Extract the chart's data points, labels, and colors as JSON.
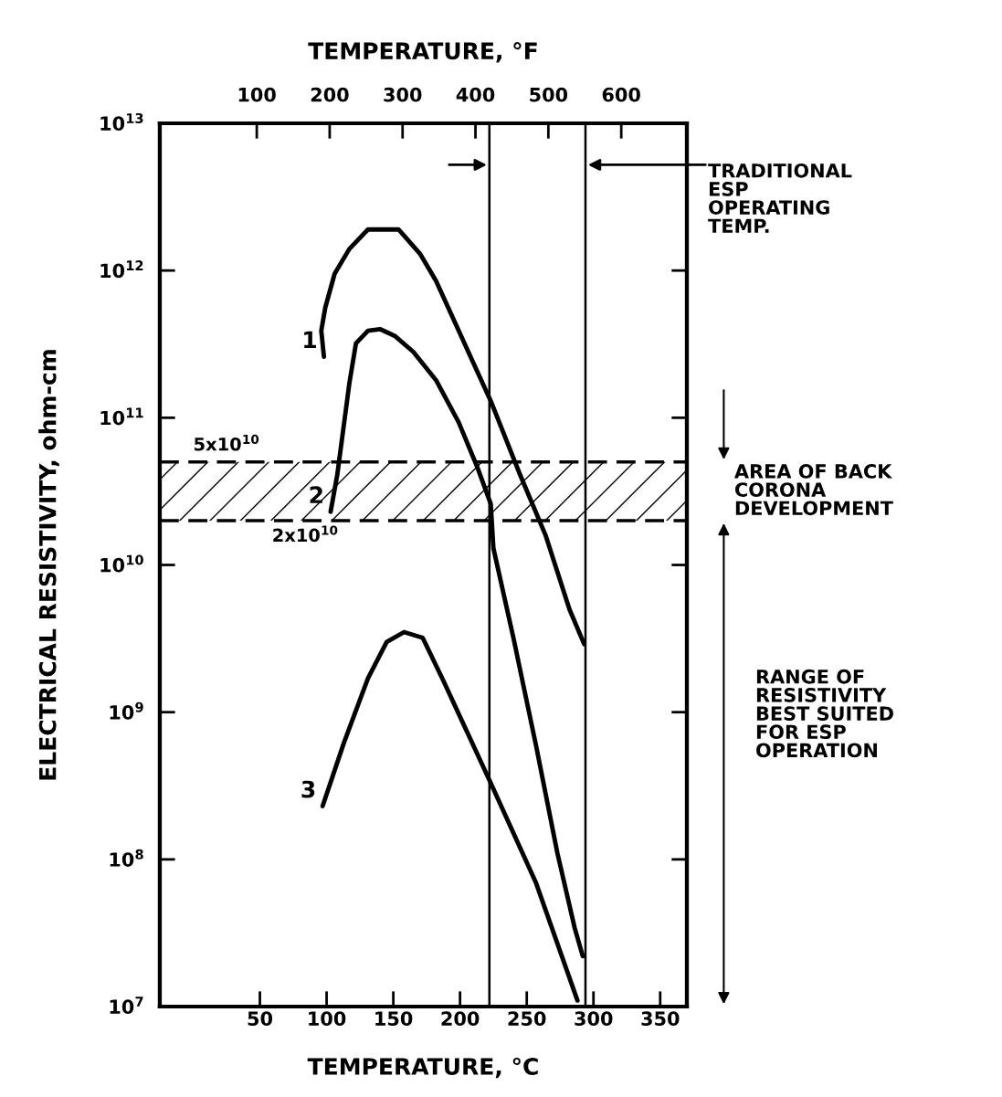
{
  "chart_data": {
    "type": "line",
    "xlabel": "TEMPERATURE, °C",
    "x2label": "TEMPERATURE, °F",
    "ylabel": "ELECTRICAL RESISTIVITY, ohm-cm",
    "xlim": [
      -25,
      370
    ],
    "xticks": [
      50,
      100,
      150,
      200,
      250,
      300,
      350
    ],
    "x2lim": [
      -33,
      690
    ],
    "x2ticks": [
      100,
      200,
      300,
      400,
      500,
      600
    ],
    "log": true,
    "ylim": [
      10000000.0,
      10000000000000.0
    ],
    "yticks": [
      {
        "value": 10000000.0,
        "label": "10$^{7}$"
      },
      {
        "value": 100000000.0,
        "label": "10$^{8}$"
      },
      {
        "value": 1000000000.0,
        "label": "10$^{9}$"
      },
      {
        "value": 10000000000.0,
        "label": "10$^{10}$"
      },
      {
        "value": 100000000000.0,
        "label": "10$^{11}$"
      },
      {
        "value": 1000000000000.0,
        "label": "10$^{12}$"
      },
      {
        "value": 10000000000000.0,
        "label": "10$^{13}$"
      }
    ],
    "series": [
      {
        "name": "1",
        "color": "#000000",
        "x": [
          98,
          96,
          99,
          106,
          117,
          131,
          141,
          154,
          170,
          182,
          199,
          223,
          245,
          264,
          282,
          293
        ],
        "values": [
          260000000000.0,
          390000000000.0,
          560000000000.0,
          950000000000.0,
          1400000000000.0,
          1900000000000.0,
          1900000000000.0,
          1900000000000.0,
          1300000000000.0,
          850000000000.0,
          390000000000.0,
          130000000000.0,
          41000000000.0,
          16000000000.0,
          5000000000.0,
          2900000000.0
        ]
      },
      {
        "name": "2",
        "color": "#000000",
        "x": [
          103,
          108,
          117,
          122,
          131,
          140,
          151,
          165,
          182,
          199,
          213,
          223,
          225,
          240,
          257,
          273,
          286,
          292
        ],
        "values": [
          23000000000.0,
          41000000000.0,
          170000000000.0,
          320000000000.0,
          390000000000.0,
          400000000000.0,
          360000000000.0,
          280000000000.0,
          180000000000.0,
          93000000000.0,
          46000000000.0,
          26000000000.0,
          13000000000.0,
          3200000000.0,
          590000000.0,
          110000000.0,
          34000000.0,
          22000000.0
        ]
      },
      {
        "name": "3",
        "color": "#000000",
        "x": [
          97,
          113,
          131,
          145,
          158,
          172,
          188,
          223,
          257,
          288
        ],
        "values": [
          230000000.0,
          620000000.0,
          1700000000.0,
          3000000000.0,
          3500000000.0,
          3200000000.0,
          1600000000.0,
          330000000.0,
          69000000.0,
          11000000.0
        ]
      }
    ],
    "ref_lines": [
      {
        "axis": "x",
        "value": 222,
        "color": "#000000"
      },
      {
        "axis": "x",
        "value": 294,
        "color": "#000000"
      },
      {
        "axis": "y",
        "value": 50000000000.0,
        "color": "#000000",
        "line_style": "dashed"
      },
      {
        "axis": "y",
        "value": 20000000000.0,
        "color": "#000000",
        "line_style": "dashed"
      }
    ],
    "bands": [
      {
        "axis": "y",
        "from": 20000000000.0,
        "to": 50000000000.0,
        "label": "AREA OF BACK\nCORONA\nDEVELOPMENT",
        "color": "#000000"
      }
    ],
    "annotations": [
      {
        "text": "5x10$^{10}$",
        "x": 25,
        "y": 50000000000.0
      },
      {
        "text": "2x10$^{10}$",
        "x": 84,
        "y": 20000000000.0
      },
      "TRADITIONAL\nESP\nOPERATING\nTEMP.",
      "RANGE OF\nRESISTIVITY\nBEST SUITED\nFOR ESP\nOPERATION"
    ]
  }
}
